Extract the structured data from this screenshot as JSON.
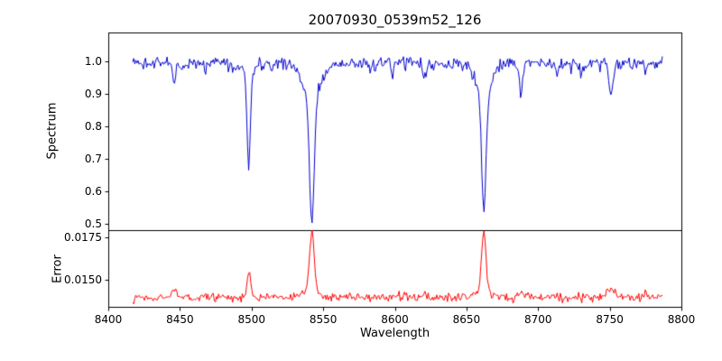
{
  "chart_data": {
    "type": "line",
    "title": "20070930_0539m52_126",
    "xlabel": "Wavelength",
    "xlim": [
      8400,
      8800
    ],
    "x_ticks": [
      8400,
      8450,
      8500,
      8550,
      8600,
      8650,
      8700,
      8750,
      8800
    ],
    "x_data_range": [
      8417,
      8787
    ],
    "sampling_step": 0.75,
    "noise_seed": 126,
    "grid": false,
    "legend": "none",
    "panels": [
      {
        "name": "spectrum",
        "ylabel": "Spectrum",
        "ylim": [
          0.48,
          1.09
        ],
        "y_ticks": [
          1.0,
          0.9,
          0.8,
          0.7,
          0.6,
          0.5
        ],
        "y_tick_labels": [
          "1.0",
          "0.9",
          "0.8",
          "0.7",
          "0.6",
          "0.5"
        ],
        "color": "#0000cd",
        "continuum": 0.995,
        "noise_sigma": 0.01,
        "absorption_lines": [
          {
            "center": 8446.0,
            "depth": 0.07,
            "sigma": 1.0,
            "min_value": 0.92
          },
          {
            "center": 8452.0,
            "depth": 0.03,
            "sigma": 0.8
          },
          {
            "center": 8468.0,
            "depth": 0.035,
            "sigma": 0.9
          },
          {
            "center": 8498.0,
            "depth": 0.3,
            "sigma": 1.1,
            "wing_depth": 0.03,
            "wing_sigma": 4.0,
            "min_value": 0.675
          },
          {
            "center": 8514.0,
            "depth": 0.03,
            "sigma": 0.8
          },
          {
            "center": 8542.1,
            "depth": 0.38,
            "sigma": 1.6,
            "wing_depth": 0.11,
            "wing_sigma": 6.0,
            "min_value": 0.51
          },
          {
            "center": 8583.0,
            "depth": 0.025,
            "sigma": 0.8
          },
          {
            "center": 8598.0,
            "depth": 0.035,
            "sigma": 0.9
          },
          {
            "center": 8621.0,
            "depth": 0.04,
            "sigma": 1.0
          },
          {
            "center": 8662.1,
            "depth": 0.36,
            "sigma": 1.5,
            "wing_depth": 0.1,
            "wing_sigma": 5.5,
            "min_value": 0.53
          },
          {
            "center": 8688.0,
            "depth": 0.09,
            "sigma": 1.1,
            "min_value": 0.9
          },
          {
            "center": 8713.0,
            "depth": 0.03,
            "sigma": 0.9
          },
          {
            "center": 8730.0,
            "depth": 0.03,
            "sigma": 0.9
          },
          {
            "center": 8751.0,
            "depth": 0.1,
            "sigma": 1.4,
            "min_value": 0.88
          },
          {
            "center": 8775.0,
            "depth": 0.03,
            "sigma": 0.9
          }
        ]
      },
      {
        "name": "error",
        "ylabel": "Error",
        "ylim": [
          0.0134,
          0.0179
        ],
        "y_ticks": [
          0.0175,
          0.015
        ],
        "y_tick_labels": [
          "0.0175",
          "0.0150"
        ],
        "color": "#ff0000",
        "baseline": 0.01395,
        "noise_sigma": 0.00012,
        "spikes": [
          {
            "center": 8446.0,
            "amplitude": 0.0005,
            "sigma": 1.5
          },
          {
            "center": 8468.0,
            "amplitude": 0.0002,
            "sigma": 1.2
          },
          {
            "center": 8498.0,
            "amplitude": 0.00155,
            "sigma": 1.2,
            "peak_value": 0.0155
          },
          {
            "center": 8542.1,
            "amplitude": 0.00345,
            "sigma": 1.6,
            "wing_amplitude": 0.0004,
            "wing_sigma": 5.0,
            "peak_value": 0.0176
          },
          {
            "center": 8621.0,
            "amplitude": 0.0002,
            "sigma": 1.5
          },
          {
            "center": 8662.1,
            "amplitude": 0.00345,
            "sigma": 1.5,
            "wing_amplitude": 0.0004,
            "wing_sigma": 5.0,
            "peak_value": 0.0176
          },
          {
            "center": 8688.0,
            "amplitude": 0.0003,
            "sigma": 1.5
          },
          {
            "center": 8751.0,
            "amplitude": 0.0005,
            "sigma": 2.5
          },
          {
            "center": 8775.0,
            "amplitude": 0.0002,
            "sigma": 1.5
          }
        ]
      }
    ]
  }
}
